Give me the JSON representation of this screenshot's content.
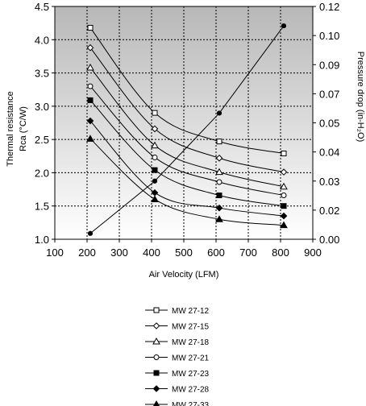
{
  "chart_data": {
    "type": "line",
    "xlabel": "Air Velocity (LFM)",
    "ylabel_left_line1": "Thermal resistance",
    "ylabel_left_line2": "Rca (°C/W)",
    "ylabel_right": "Pressure drop (in-H₂O)",
    "xlim": [
      100,
      900
    ],
    "ylim_left": [
      1.0,
      4.5
    ],
    "ylim_right": [
      0.0,
      0.12
    ],
    "x_ticks": [
      "100",
      "200",
      "300",
      "400",
      "500",
      "600",
      "700",
      "800",
      "900"
    ],
    "y_left_ticks": [
      "1.0",
      "1.5",
      "2.0",
      "2.5",
      "3.0",
      "3.5",
      "4.0",
      "4.5"
    ],
    "y_right_ticks": [
      "0.00",
      "0.02",
      "0.03",
      "0.04",
      "0.05",
      "0.07",
      "0.09",
      "0.10",
      "0.12"
    ],
    "grid": true,
    "legend_position": "below",
    "background_gradient": [
      "#b8b8b8",
      "#ffffff"
    ],
    "series": [
      {
        "name": "MW 27-12",
        "marker": "square-open",
        "axis": "left",
        "x": [
          210,
          410,
          610,
          810
        ],
        "values": [
          4.18,
          2.9,
          2.47,
          2.29
        ]
      },
      {
        "name": "MW 27-15",
        "marker": "diamond-open",
        "axis": "left",
        "x": [
          210,
          410,
          610,
          810
        ],
        "values": [
          3.88,
          2.66,
          2.22,
          2.01
        ]
      },
      {
        "name": "MW 27-18",
        "marker": "triangle-open",
        "axis": "left",
        "x": [
          210,
          410,
          610,
          810
        ],
        "values": [
          3.58,
          2.41,
          2.01,
          1.79
        ]
      },
      {
        "name": "MW 27-21",
        "marker": "circle-open",
        "axis": "left",
        "x": [
          210,
          410,
          610,
          810
        ],
        "values": [
          3.3,
          2.23,
          1.86,
          1.66
        ]
      },
      {
        "name": "MW 27-23",
        "marker": "square-filled",
        "axis": "left",
        "x": [
          210,
          410,
          610,
          810
        ],
        "values": [
          3.09,
          2.04,
          1.66,
          1.5
        ]
      },
      {
        "name": "MW 27-28",
        "marker": "diamond-filled",
        "axis": "left",
        "x": [
          210,
          410,
          610,
          810
        ],
        "values": [
          2.78,
          1.7,
          1.47,
          1.35
        ]
      },
      {
        "name": "MW 27-33",
        "marker": "triangle-filled",
        "axis": "left",
        "x": [
          210,
          410,
          610,
          810
        ],
        "values": [
          2.51,
          1.6,
          1.3,
          1.21
        ]
      },
      {
        "marker": "dot-filled",
        "axis": "right",
        "x": [
          210,
          410,
          610,
          810
        ],
        "values": [
          0.003,
          0.03,
          0.065,
          0.11
        ]
      }
    ]
  }
}
